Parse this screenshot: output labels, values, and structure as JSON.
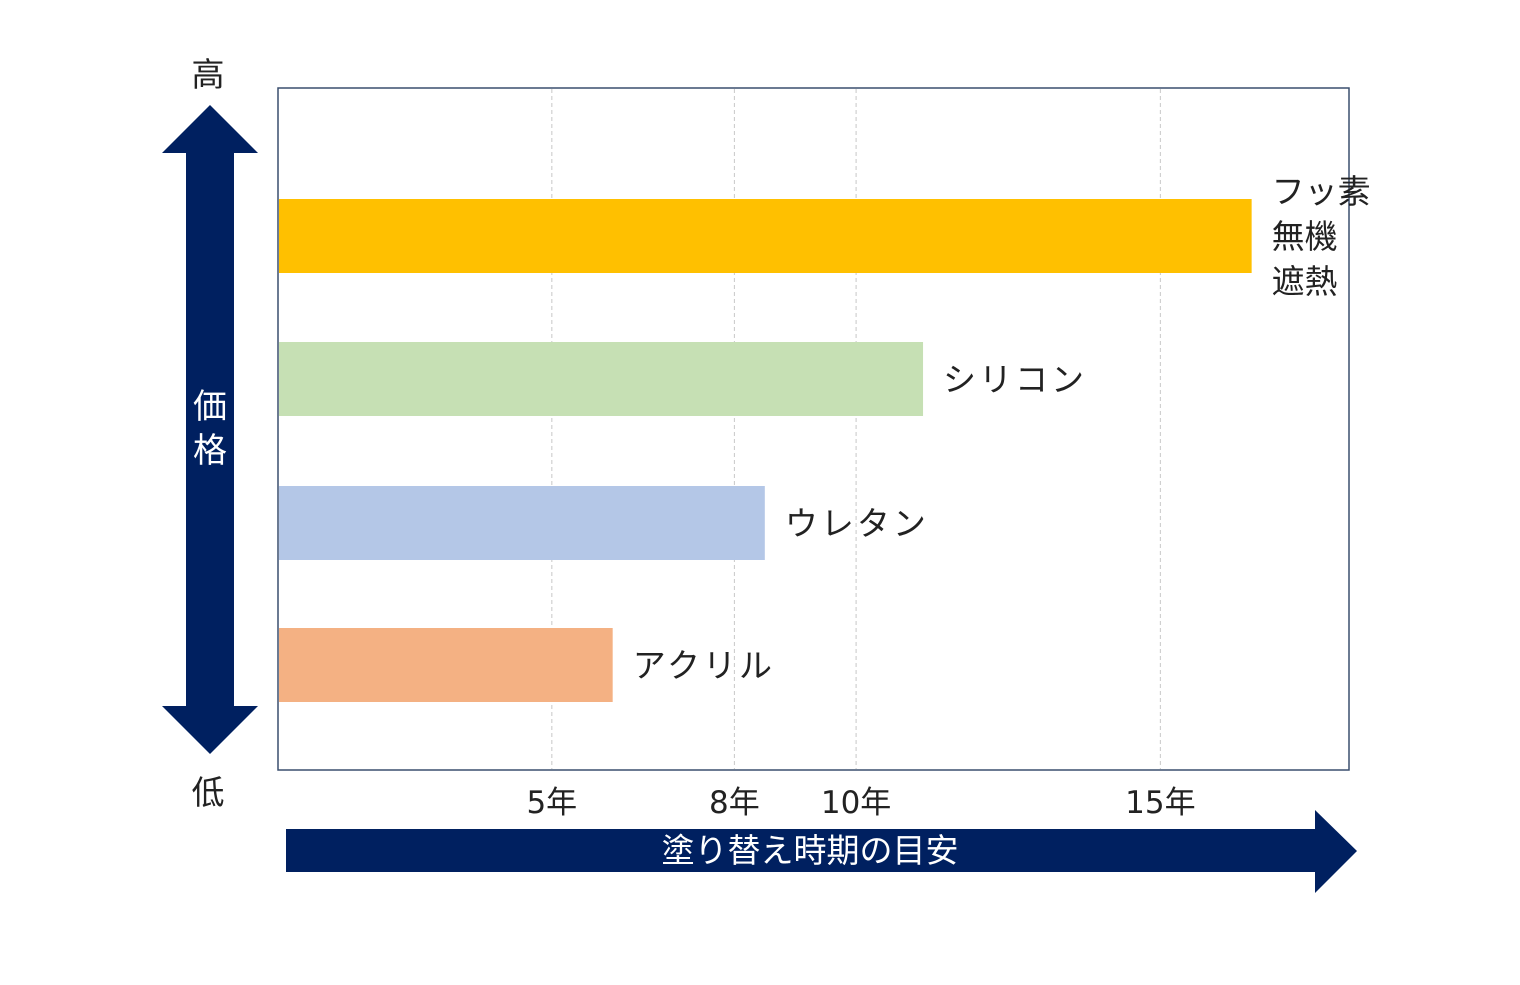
{
  "chart_data": {
    "type": "bar",
    "orientation": "horizontal",
    "categories": [
      "フッ素\n無機\n遮熱",
      "シリコン",
      "ウレタン",
      "アクリル"
    ],
    "values": [
      16.5,
      11.1,
      8.5,
      6.0
    ],
    "x_ticks": [
      5,
      8,
      10,
      15
    ],
    "x_tick_labels": [
      "5年",
      "8年",
      "10年",
      "15年"
    ],
    "xlim": [
      0.5,
      18.1
    ],
    "xlabel": "塗り替え時期の目安",
    "ylabel": "価格",
    "y_high_label": "高",
    "y_low_label": "低",
    "colors": [
      "#ffc000",
      "#c6e0b4",
      "#b4c7e7",
      "#f4b183"
    ],
    "axis_arrow_color": "#002060",
    "grid": "vertical dashed",
    "legend": "none"
  }
}
